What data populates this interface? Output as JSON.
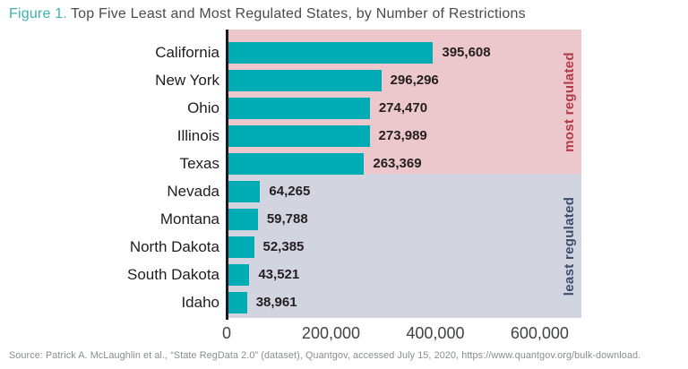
{
  "title": {
    "prefix": "Figure 1.",
    "text": "Top Five Least and Most Regulated States, by Number of Restrictions"
  },
  "chart_data": {
    "type": "bar",
    "orientation": "horizontal",
    "title": "Top Five Least and Most Regulated States, by Number of Restrictions",
    "categories": [
      "California",
      "New York",
      "Ohio",
      "Illinois",
      "Texas",
      "Nevada",
      "Montana",
      "North Dakota",
      "South Dakota",
      "Idaho"
    ],
    "values": [
      395608,
      296296,
      274470,
      273989,
      263369,
      64265,
      59788,
      52385,
      43521,
      38961
    ],
    "value_labels": [
      "395,608",
      "296,296",
      "274,470",
      "273,989",
      "263,369",
      "64,265",
      "59,788",
      "52,385",
      "43,521",
      "38,961"
    ],
    "bar_color": "#00acb3",
    "grid": false,
    "legend_position": "none",
    "x_max": 680000,
    "x_ticks": [
      {
        "value": 0,
        "label": "0"
      },
      {
        "value": 200000,
        "label": "200,000"
      },
      {
        "value": 400000,
        "label": "400,000"
      },
      {
        "value": 600000,
        "label": "600,000"
      }
    ],
    "groups": [
      {
        "label": "most regulated",
        "from": 0,
        "to": 4,
        "bg_color": "#ecc7cb",
        "label_color": "#b23b48"
      },
      {
        "label": "least regulated",
        "from": 5,
        "to": 9,
        "bg_color": "#d2d5e0",
        "label_color": "#3e4c6d"
      }
    ]
  },
  "source": "Source: Patrick A. McLaughlin et al., “State RegData 2.0” (dataset), Quantgov, accessed July 15, 2020, https://www.quantgov.org/bulk-download."
}
